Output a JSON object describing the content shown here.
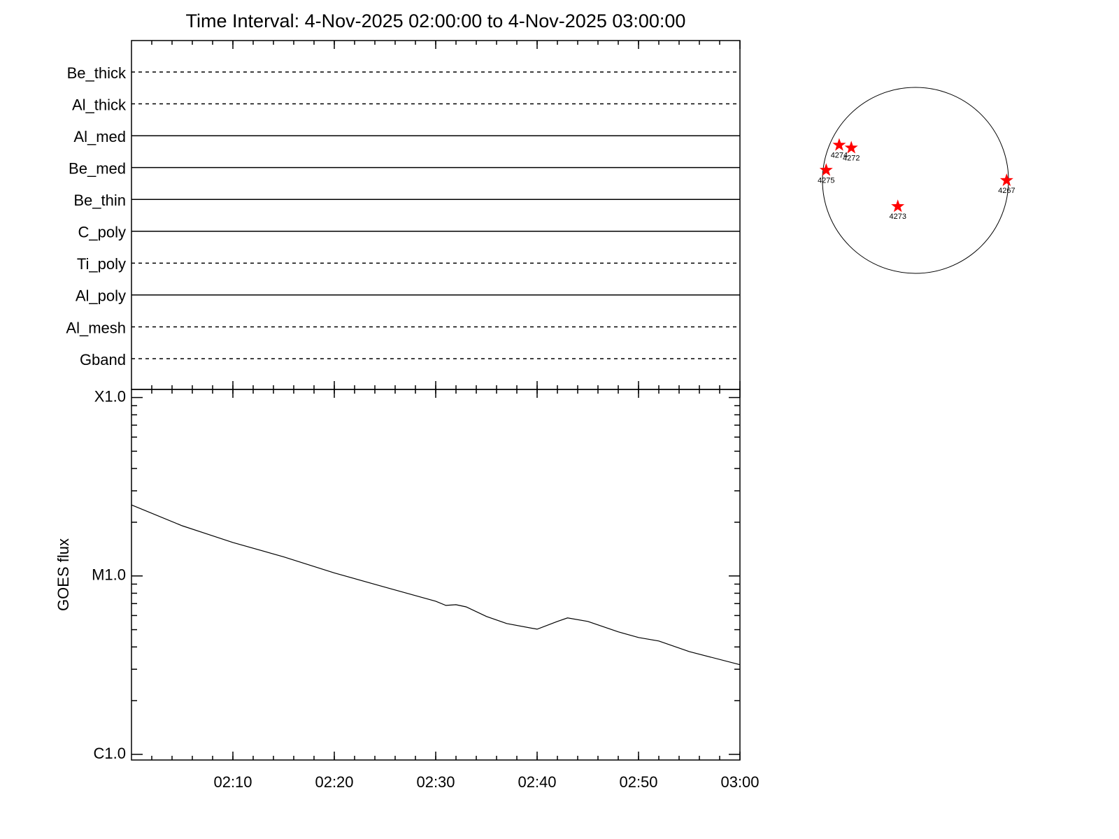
{
  "chart_data": [
    {
      "type": "timeline",
      "title": "Time Interval:  4-Nov-2025 02:00:00 to  4-Nov-2025 03:00:00",
      "filters": [
        {
          "name": "Be_thick",
          "style": "dashed"
        },
        {
          "name": "Al_thick",
          "style": "dashed"
        },
        {
          "name": "Al_med",
          "style": "solid"
        },
        {
          "name": "Be_med",
          "style": "solid"
        },
        {
          "name": "Be_thin",
          "style": "solid"
        },
        {
          "name": "C_poly",
          "style": "solid"
        },
        {
          "name": "Ti_poly",
          "style": "dashed"
        },
        {
          "name": "Al_poly",
          "style": "solid"
        },
        {
          "name": "Al_mesh",
          "style": "dashed"
        },
        {
          "name": "Gband",
          "style": "dashed"
        }
      ]
    },
    {
      "type": "line",
      "y_label": "GOES flux",
      "log_scale": true,
      "color": "#000000",
      "x": [
        "02:00",
        "02:05",
        "02:10",
        "02:15",
        "02:20",
        "02:25",
        "02:30",
        "02:31",
        "02:32",
        "02:33",
        "02:35",
        "02:37",
        "02:40",
        "02:42",
        "02:43",
        "02:45",
        "02:48",
        "02:50",
        "02:52",
        "02:55",
        "03:00"
      ],
      "values": [
        2.5e-05,
        1.91e-05,
        1.54e-05,
        1.28e-05,
        1.04e-05,
        8.65e-06,
        7.22e-06,
        6.84e-06,
        6.9e-06,
        6.71e-06,
        5.93e-06,
        5.41e-06,
        5.03e-06,
        5.56e-06,
        5.82e-06,
        5.56e-06,
        4.86e-06,
        4.52e-06,
        4.32e-06,
        3.77e-06,
        3.18e-06
      ],
      "xlim": [
        "02:00",
        "03:00"
      ],
      "xticks": [
        "02:10",
        "02:20",
        "02:30",
        "02:40",
        "02:50",
        "03:00"
      ],
      "ylim": [
        9.3e-07,
        0.000111
      ],
      "yticks": [
        {
          "value": 1e-06,
          "label": "C1.0"
        },
        {
          "value": 1e-05,
          "label": "M1.0"
        },
        {
          "value": 0.0001,
          "label": "X1.0"
        }
      ]
    },
    {
      "type": "scatter",
      "color": "#ff0000",
      "regions": [
        {
          "label": "4274",
          "x": -0.82,
          "y": 0.38
        },
        {
          "label": "4272",
          "x": -0.69,
          "y": 0.35
        },
        {
          "label": "4275",
          "x": -0.96,
          "y": 0.11
        },
        {
          "label": "4267",
          "x": 0.98,
          "y": 0.0
        },
        {
          "label": "4273",
          "x": -0.19,
          "y": -0.28
        }
      ]
    }
  ]
}
